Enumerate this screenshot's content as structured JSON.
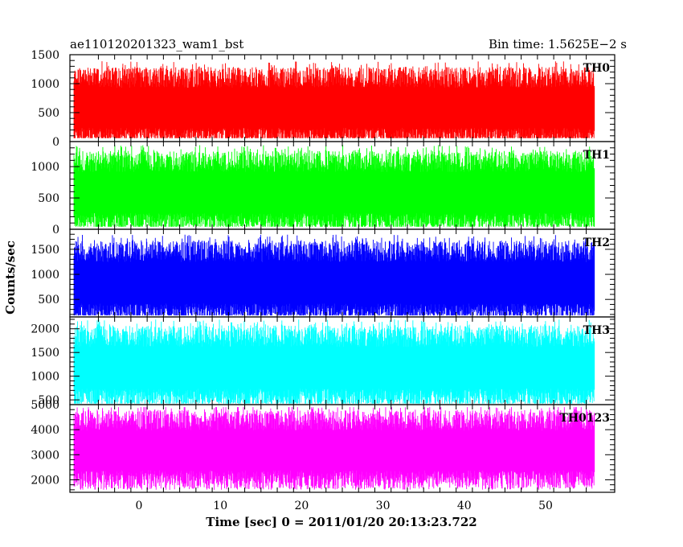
{
  "chart_data": {
    "type": "line",
    "title": "ae110120201323_wam1_bst",
    "subtitle": "Bin time: 1.5625E−2 s",
    "xlabel": "Time [sec] 0 = 2011/01/20 20:13:23.722",
    "ylabel": "Counts/sec",
    "xlim": [
      -8.5,
      58.5
    ],
    "x_range_data": [
      -8,
      56
    ],
    "x_ticks": [
      0,
      10,
      20,
      30,
      40,
      50
    ],
    "x_tick_labels": [
      "0",
      "10",
      "20",
      "30",
      "40",
      "50"
    ],
    "grid": false,
    "panels": [
      {
        "name": "TH0",
        "color": "#ff0000",
        "ylim": [
          0,
          1500
        ],
        "y_ticks": [
          0,
          500,
          1000,
          1500
        ],
        "y_tick_labels": [
          "0",
          "500",
          "1000",
          "1500"
        ],
        "approx_mean": 640,
        "approx_min": 60,
        "approx_max": 1500
      },
      {
        "name": "TH1",
        "color": "#00ff00",
        "ylim": [
          0,
          1400
        ],
        "y_ticks": [
          0,
          500,
          1000
        ],
        "y_tick_labels": [
          "0",
          "500",
          "1000"
        ],
        "approx_mean": 640,
        "approx_min": 40,
        "approx_max": 1400
      },
      {
        "name": "TH2",
        "color": "#0000ff",
        "ylim": [
          150,
          1900
        ],
        "y_ticks": [
          500,
          1000,
          1500
        ],
        "y_tick_labels": [
          "500",
          "1000",
          "1500"
        ],
        "approx_mean": 900,
        "approx_min": 180,
        "approx_max": 1900
      },
      {
        "name": "TH3",
        "color": "#00ffff",
        "ylim": [
          400,
          2250
        ],
        "y_ticks": [
          500,
          1000,
          1500,
          2000
        ],
        "y_tick_labels": [
          "500",
          "1000",
          "1500",
          "2000"
        ],
        "approx_mean": 1250,
        "approx_min": 420,
        "approx_max": 2250
      },
      {
        "name": "TH0123",
        "color": "#ff00ff",
        "ylim": [
          1500,
          5000
        ],
        "y_ticks": [
          2000,
          3000,
          4000,
          5000
        ],
        "y_tick_labels": [
          "2000",
          "3000",
          "4000",
          "5000"
        ],
        "approx_mean": 3300,
        "approx_min": 1600,
        "approx_max": 4900
      }
    ]
  }
}
